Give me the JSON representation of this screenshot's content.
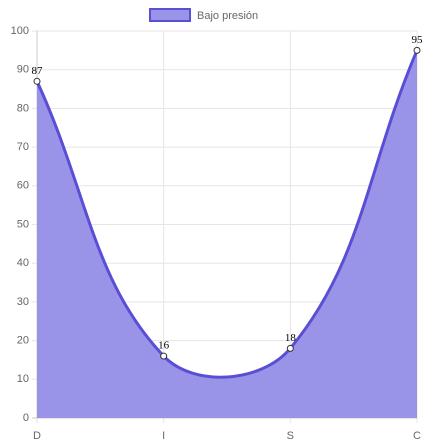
{
  "chart_data": {
    "type": "line",
    "categories": [
      "D",
      "I",
      "S",
      "C"
    ],
    "series": [
      {
        "name": "Bajo presión",
        "color": "#5a4fd4",
        "fill": "#9a94e8",
        "values": [
          87,
          16,
          18,
          95
        ]
      }
    ],
    "ylim": [
      0,
      100
    ],
    "yticks": [
      0,
      10,
      20,
      30,
      40,
      50,
      60,
      70,
      80,
      90,
      100
    ],
    "grid": true,
    "legend": "top",
    "data_labels": true
  }
}
